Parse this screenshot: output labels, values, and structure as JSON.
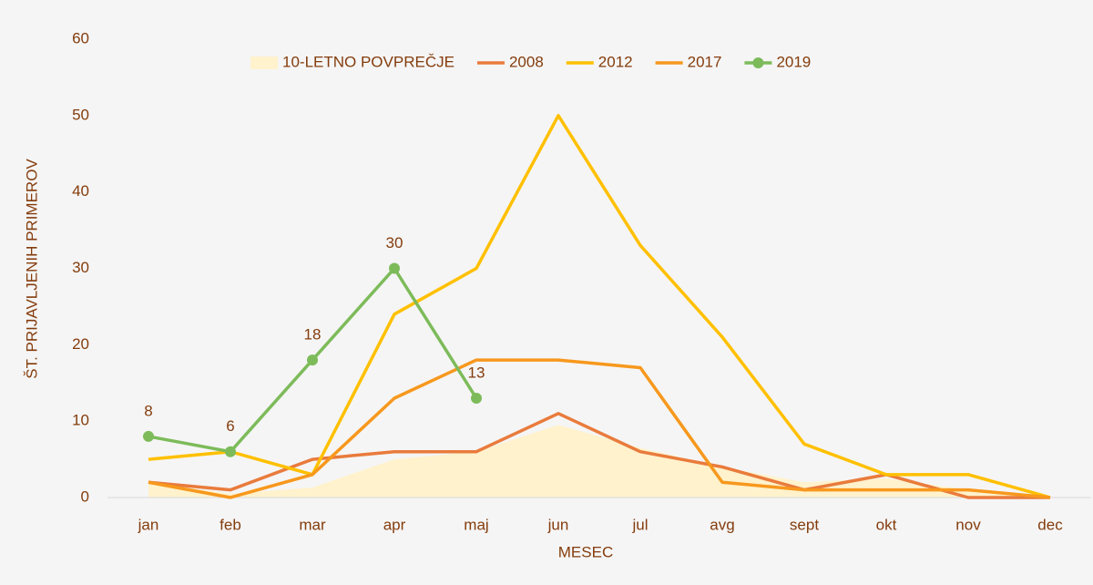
{
  "chart_data": {
    "type": "line",
    "x_label": "MESEC",
    "y_label": "ŠT. PRIJAVLJENIH PRIMEROV",
    "categories": [
      "jan",
      "feb",
      "mar",
      "apr",
      "maj",
      "jun",
      "jul",
      "avg",
      "sept",
      "okt",
      "nov",
      "dec"
    ],
    "ylim": [
      0,
      60
    ],
    "yticks": [
      0,
      10,
      20,
      30,
      40,
      50,
      60
    ],
    "grid": false,
    "legend": "top",
    "series": [
      {
        "name": "10-LETNO POVPREČJE",
        "type": "area",
        "color": "#fff2cc",
        "values": [
          2,
          0.5,
          1.3,
          5,
          6,
          9.5,
          6.5,
          4,
          2,
          2.5,
          1,
          0.2
        ]
      },
      {
        "name": "2008",
        "type": "line",
        "color": "#e97b3c",
        "values": [
          2,
          1,
          5,
          6,
          6,
          11,
          6,
          4,
          1,
          3,
          0,
          0
        ]
      },
      {
        "name": "2012",
        "type": "line",
        "color": "#ffc000",
        "values": [
          5,
          6,
          3,
          24,
          30,
          50,
          33,
          21,
          7,
          3,
          3,
          0
        ]
      },
      {
        "name": "2017",
        "type": "line",
        "color": "#f7981d",
        "values": [
          2,
          0,
          3,
          13,
          18,
          18,
          17,
          2,
          1,
          1,
          1,
          0
        ]
      },
      {
        "name": "2019",
        "type": "line",
        "color": "#7dbb5a",
        "markers": true,
        "data_labels": true,
        "values": [
          8,
          6,
          18,
          30,
          13,
          null,
          null,
          null,
          null,
          null,
          null,
          null
        ]
      }
    ]
  }
}
